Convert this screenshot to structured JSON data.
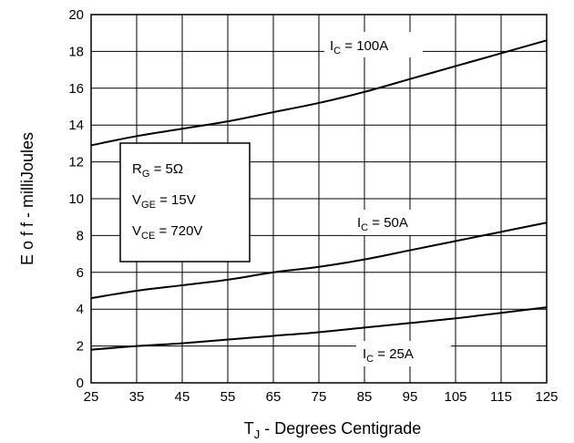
{
  "chart_data": {
    "type": "line",
    "title": "",
    "xlabel": {
      "main": "T",
      "sub": "J",
      "rest": " - Degrees Centigrade"
    },
    "ylabel": "E o f f  - milliJoules",
    "xlim": [
      25,
      125
    ],
    "ylim": [
      0,
      20
    ],
    "x_ticks": [
      25,
      35,
      45,
      55,
      65,
      75,
      85,
      95,
      105,
      115,
      125
    ],
    "y_ticks": [
      0,
      2,
      4,
      6,
      8,
      10,
      12,
      14,
      16,
      18,
      20
    ],
    "grid": true,
    "x": [
      25,
      35,
      45,
      55,
      65,
      75,
      85,
      95,
      105,
      115,
      125
    ],
    "series": [
      {
        "label": {
          "main": "I",
          "sub": "C",
          "rest": " = 100A"
        },
        "values": [
          12.9,
          13.4,
          13.8,
          14.2,
          14.7,
          15.2,
          15.8,
          16.5,
          17.2,
          17.9,
          18.6
        ]
      },
      {
        "label": {
          "main": "I",
          "sub": "C",
          "rest": " = 50A"
        },
        "values": [
          4.6,
          5.0,
          5.3,
          5.6,
          6.0,
          6.3,
          6.7,
          7.2,
          7.7,
          8.2,
          8.7
        ]
      },
      {
        "label": {
          "main": "I",
          "sub": "C",
          "rest": " = 25A"
        },
        "values": [
          1.8,
          2.0,
          2.15,
          2.35,
          2.55,
          2.75,
          3.0,
          3.25,
          3.5,
          3.8,
          4.1
        ]
      }
    ],
    "conditions": [
      {
        "main": "R",
        "sub": "G",
        "rest": " = 5Ω"
      },
      {
        "main": "V",
        "sub": "GE",
        "rest": " = 15V"
      },
      {
        "main": "V",
        "sub": "CE",
        "rest": " = 720V"
      }
    ]
  }
}
